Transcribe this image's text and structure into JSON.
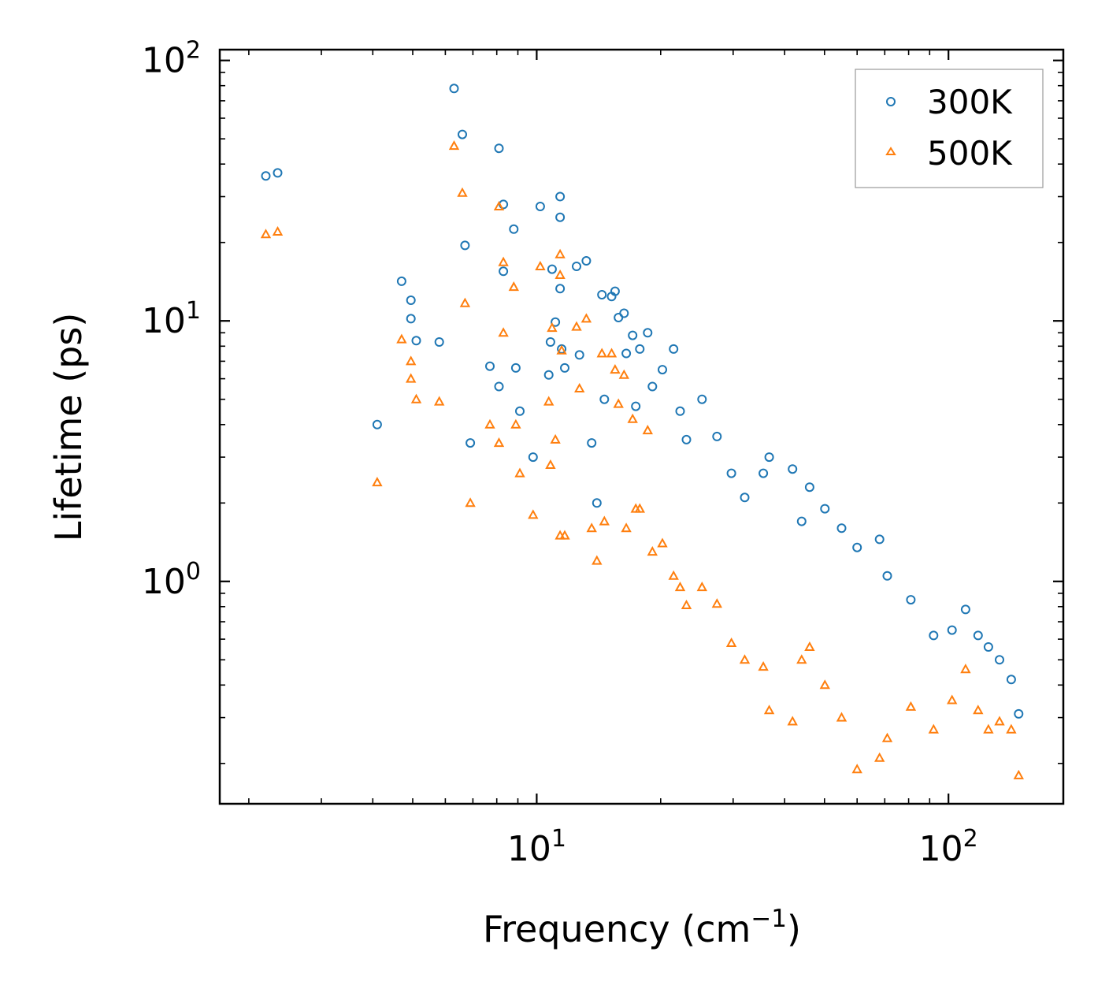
{
  "chart_data": {
    "type": "scatter",
    "xscale": "log",
    "yscale": "log",
    "xlim": [
      1.7,
      190
    ],
    "ylim": [
      0.14,
      110
    ],
    "xlabel_main": "Frequency (cm",
    "xlabel_sup": "−1",
    "xlabel_tail": ")",
    "ylabel": "Lifetime (ps)",
    "xticks": [
      {
        "value": 10,
        "base": "10",
        "exp": "1"
      },
      {
        "value": 100,
        "base": "10",
        "exp": "2"
      }
    ],
    "yticks": [
      {
        "value": 1,
        "base": "10",
        "exp": "0"
      },
      {
        "value": 10,
        "base": "10",
        "exp": "1"
      },
      {
        "value": 100,
        "base": "10",
        "exp": "2"
      }
    ],
    "legend": {
      "placement": "top-right"
    },
    "series": [
      {
        "name": "300K",
        "marker": "circle",
        "color": "#1f77b4",
        "points": [
          [
            2.2,
            36
          ],
          [
            2.35,
            37
          ],
          [
            4.1,
            4.0
          ],
          [
            4.7,
            14.2
          ],
          [
            4.95,
            12.0
          ],
          [
            4.95,
            10.2
          ],
          [
            5.1,
            8.4
          ],
          [
            5.8,
            8.3
          ],
          [
            6.3,
            78
          ],
          [
            6.6,
            52
          ],
          [
            6.7,
            19.5
          ],
          [
            6.9,
            3.4
          ],
          [
            7.7,
            6.7
          ],
          [
            8.1,
            46
          ],
          [
            8.1,
            5.6
          ],
          [
            8.3,
            28
          ],
          [
            8.3,
            15.5
          ],
          [
            8.8,
            22.5
          ],
          [
            8.9,
            6.6
          ],
          [
            9.1,
            4.5
          ],
          [
            9.8,
            3.0
          ],
          [
            10.2,
            27.5
          ],
          [
            10.7,
            6.2
          ],
          [
            10.8,
            8.3
          ],
          [
            10.9,
            15.8
          ],
          [
            11.1,
            9.9
          ],
          [
            11.4,
            30
          ],
          [
            11.4,
            25
          ],
          [
            11.4,
            13.3
          ],
          [
            11.5,
            7.8
          ],
          [
            11.7,
            6.6
          ],
          [
            12.5,
            16.2
          ],
          [
            12.7,
            7.4
          ],
          [
            13.2,
            17
          ],
          [
            13.6,
            3.4
          ],
          [
            14.0,
            2.0
          ],
          [
            14.4,
            12.6
          ],
          [
            14.6,
            5.0
          ],
          [
            15.2,
            12.4
          ],
          [
            15.5,
            13.0
          ],
          [
            15.8,
            10.3
          ],
          [
            16.3,
            10.7
          ],
          [
            16.5,
            7.5
          ],
          [
            17.1,
            8.8
          ],
          [
            17.4,
            4.7
          ],
          [
            17.8,
            7.8
          ],
          [
            18.6,
            9.0
          ],
          [
            19.1,
            5.6
          ],
          [
            20.2,
            6.5
          ],
          [
            21.5,
            7.8
          ],
          [
            22.3,
            4.5
          ],
          [
            23.1,
            3.5
          ],
          [
            25.2,
            5.0
          ],
          [
            27.4,
            3.6
          ],
          [
            29.7,
            2.6
          ],
          [
            32.0,
            2.1
          ],
          [
            35.5,
            2.6
          ],
          [
            36.7,
            3.0
          ],
          [
            41.8,
            2.7
          ],
          [
            44.0,
            1.7
          ],
          [
            46.0,
            2.3
          ],
          [
            50.1,
            1.9
          ],
          [
            55.0,
            1.6
          ],
          [
            60.0,
            1.35
          ],
          [
            68.0,
            1.45
          ],
          [
            71.0,
            1.05
          ],
          [
            81.0,
            0.85
          ],
          [
            92.0,
            0.62
          ],
          [
            102.0,
            0.65
          ],
          [
            110.0,
            0.78
          ],
          [
            118.0,
            0.62
          ],
          [
            125.0,
            0.56
          ],
          [
            133.0,
            0.5
          ],
          [
            142.0,
            0.42
          ],
          [
            148.0,
            0.31
          ]
        ]
      },
      {
        "name": "500K",
        "marker": "triangle",
        "color": "#ff7f0e",
        "points": [
          [
            2.2,
            21.5
          ],
          [
            2.35,
            22
          ],
          [
            4.1,
            2.4
          ],
          [
            4.7,
            8.5
          ],
          [
            4.95,
            7.0
          ],
          [
            4.95,
            6.0
          ],
          [
            5.1,
            5.0
          ],
          [
            5.8,
            4.9
          ],
          [
            6.3,
            47
          ],
          [
            6.6,
            31
          ],
          [
            6.7,
            11.7
          ],
          [
            6.9,
            2.0
          ],
          [
            7.7,
            4.0
          ],
          [
            8.1,
            27.5
          ],
          [
            8.1,
            3.4
          ],
          [
            8.3,
            16.8
          ],
          [
            8.3,
            9.0
          ],
          [
            8.8,
            13.5
          ],
          [
            8.9,
            4.0
          ],
          [
            9.1,
            2.6
          ],
          [
            9.8,
            1.8
          ],
          [
            10.2,
            16.2
          ],
          [
            10.7,
            4.9
          ],
          [
            10.8,
            2.8
          ],
          [
            10.9,
            9.4
          ],
          [
            11.1,
            3.5
          ],
          [
            11.4,
            18.0
          ],
          [
            11.4,
            15.0
          ],
          [
            11.4,
            1.5
          ],
          [
            11.5,
            7.7
          ],
          [
            11.7,
            1.5
          ],
          [
            12.5,
            9.5
          ],
          [
            12.7,
            5.5
          ],
          [
            13.2,
            10.2
          ],
          [
            13.6,
            1.6
          ],
          [
            14.0,
            1.2
          ],
          [
            14.4,
            7.5
          ],
          [
            14.6,
            1.7
          ],
          [
            15.2,
            7.5
          ],
          [
            15.5,
            6.5
          ],
          [
            15.8,
            4.8
          ],
          [
            16.3,
            6.2
          ],
          [
            16.5,
            1.6
          ],
          [
            17.1,
            4.2
          ],
          [
            17.4,
            1.9
          ],
          [
            17.8,
            1.9
          ],
          [
            18.6,
            3.8
          ],
          [
            19.1,
            1.3
          ],
          [
            20.2,
            1.4
          ],
          [
            21.5,
            1.05
          ],
          [
            22.3,
            0.95
          ],
          [
            23.1,
            0.81
          ],
          [
            25.2,
            0.95
          ],
          [
            27.4,
            0.82
          ],
          [
            29.7,
            0.58
          ],
          [
            32.0,
            0.5
          ],
          [
            35.5,
            0.47
          ],
          [
            36.7,
            0.32
          ],
          [
            41.8,
            0.29
          ],
          [
            44.0,
            0.5
          ],
          [
            46.0,
            0.56
          ],
          [
            50.1,
            0.4
          ],
          [
            55.0,
            0.3
          ],
          [
            60.0,
            0.19
          ],
          [
            68.0,
            0.21
          ],
          [
            71.0,
            0.25
          ],
          [
            81.0,
            0.33
          ],
          [
            92.0,
            0.27
          ],
          [
            102.0,
            0.35
          ],
          [
            110.0,
            0.46
          ],
          [
            118.0,
            0.32
          ],
          [
            125.0,
            0.27
          ],
          [
            133.0,
            0.29
          ],
          [
            142.0,
            0.27
          ],
          [
            148.0,
            0.18
          ]
        ]
      }
    ]
  }
}
